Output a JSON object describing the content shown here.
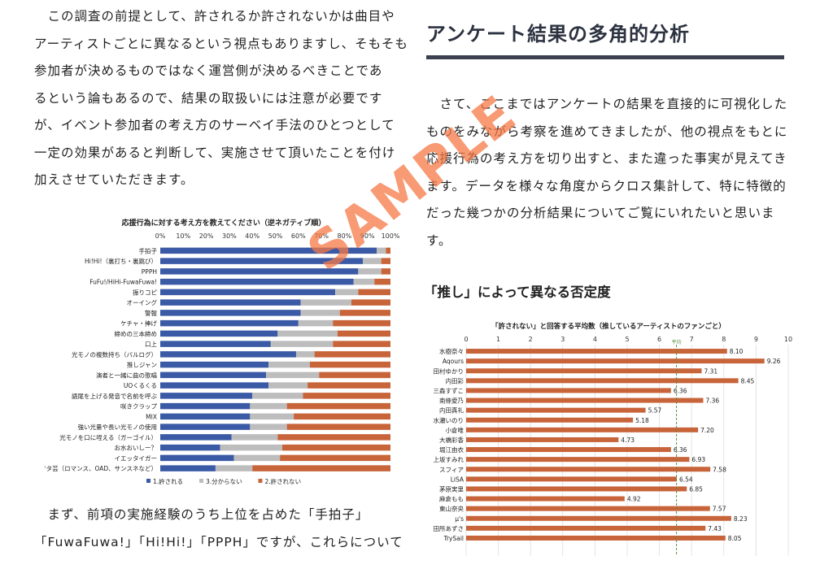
{
  "left_paragraph_top": [
    "　この調査の前提として、許されるか許されないかは曲目や",
    "アーティストごとに異なるという視点もありますし、そもそも",
    "参加者が決めるものではなく運営側が決めるべきことであ",
    "るという論もあるので、結果の取扱いには注意が必要です",
    "が、イベント参加者の考え方のサーベイ手法のひとつとして",
    "一定の効果があると判断して、実施させて頂いたことを付け",
    "加えさせていただきます。"
  ],
  "section": {
    "title": "アンケート結果の多角的分析"
  },
  "right_paragraph": [
    "　さて、ここまではアンケートの結果を直接的に可視化した",
    "ものをみながら考察を進めてきましたが、他の視点をもとに",
    "応援行為の考え方を切り出すと、また違った事実が見えてき",
    "ます。データを様々な角度からクロス集計して、特に特徴的",
    "だった幾つかの分析結果についてご覧にいれたいと思いま",
    "す。"
  ],
  "subheading": "「推し」によって異なる否定度",
  "left_paragraph_bottom": [
    "　まず、前項の実施経験のうち上位を占めた「手拍子」",
    "「FuwaFuwa!」「Hi!Hi!」「PPPH」ですが、これらについて"
  ],
  "watermark": "SAMPLE",
  "colors": {
    "allowed": "#3b5aa6",
    "unknown": "#bdbdbd",
    "not_allowed": "#c8643a",
    "heading": "#2c3240",
    "watermark": "#f57846"
  },
  "chart_data": [
    {
      "type": "bar",
      "orientation": "horizontal",
      "stacked": "100%",
      "title": "応援行為に対する考え方を教えてください（逆ネガティブ順）",
      "xlim": [
        0,
        100
      ],
      "tick_labels": [
        "0%",
        "10%",
        "20%",
        "30%",
        "40%",
        "50%",
        "60%",
        "70%",
        "80%",
        "90%",
        "100%"
      ],
      "categories": [
        "手拍子",
        "Hi!Hi!（裏打ち・裏跳び）",
        "PPPH",
        "FuFu!/HiHi-FuwaFuwa!",
        "振りコピ",
        "オーイング",
        "警報",
        "ケチャ・捧げ",
        "締めの三本締め",
        "口上",
        "光モノの複数持ち（バルログ）",
        "推しジャン",
        "演者と一緒に曲の歌唱",
        "UOくるくる",
        "語尾を上げる発音で名前を呼ぶ",
        "咲きクラップ",
        "MIX",
        "強い光量や長い光モノの使用",
        "光モノを口に咥える（ガーゴイル）",
        "お水おいしー？",
        "イエッタイガー",
        "ヲタ芸（ロマンス、OAD、サンスネなど）"
      ],
      "series": [
        {
          "name": "1.許される",
          "values": [
            94,
            88,
            86,
            84,
            76,
            61,
            61,
            60,
            51,
            48,
            59,
            47,
            46,
            47,
            40,
            39,
            39,
            39,
            31,
            26,
            32,
            24
          ]
        },
        {
          "name": "3.分からない",
          "values": [
            4,
            8,
            10,
            9,
            10,
            22,
            17,
            15,
            26,
            27,
            8,
            18,
            23,
            17,
            22,
            16,
            19,
            16,
            20,
            27,
            20,
            16
          ]
        },
        {
          "name": "2.許されない",
          "values": [
            2,
            4,
            4,
            7,
            14,
            17,
            22,
            25,
            23,
            25,
            33,
            35,
            31,
            36,
            38,
            45,
            42,
            45,
            49,
            47,
            48,
            60
          ]
        }
      ],
      "legend": "bottom"
    },
    {
      "type": "bar",
      "orientation": "horizontal",
      "title": "「許されない」と回答する平均数（推しているアーティストのファンごと）",
      "xlim": [
        0,
        10
      ],
      "tick_labels": [
        "0",
        "1",
        "2",
        "3",
        "4",
        "5",
        "6",
        "7",
        "8",
        "9",
        "10"
      ],
      "categories": [
        "水樹奈々",
        "Aqours",
        "田村ゆかり",
        "内田彩",
        "三森すずこ",
        "南條愛乃",
        "内田真礼",
        "水瀬いのり",
        "小倉唯",
        "大橋彩香",
        "堀江由衣",
        "上坂すみれ",
        "スフィア",
        "LiSA",
        "茅原実里",
        "麻倉もも",
        "東山奈央",
        "μ's",
        "田所あずさ",
        "TrySail"
      ],
      "values": [
        8.1,
        9.26,
        7.31,
        8.45,
        6.36,
        7.36,
        5.57,
        5.18,
        7.2,
        4.73,
        6.36,
        6.93,
        7.58,
        6.54,
        6.85,
        4.92,
        7.57,
        8.23,
        7.43,
        8.05
      ],
      "value_labels": [
        "8.10",
        "9.26",
        "7.31",
        "8.45",
        "6.36",
        "7.36",
        "5.57",
        "5.18",
        "7.20",
        "4.73",
        "6.36",
        "6.93",
        "7.58",
        "6.54",
        "6.85",
        "4.92",
        "7.57",
        "8.23",
        "7.43",
        "8.05"
      ],
      "reference_line": {
        "label": "平均",
        "value": 6.53
      },
      "grid": true
    }
  ]
}
